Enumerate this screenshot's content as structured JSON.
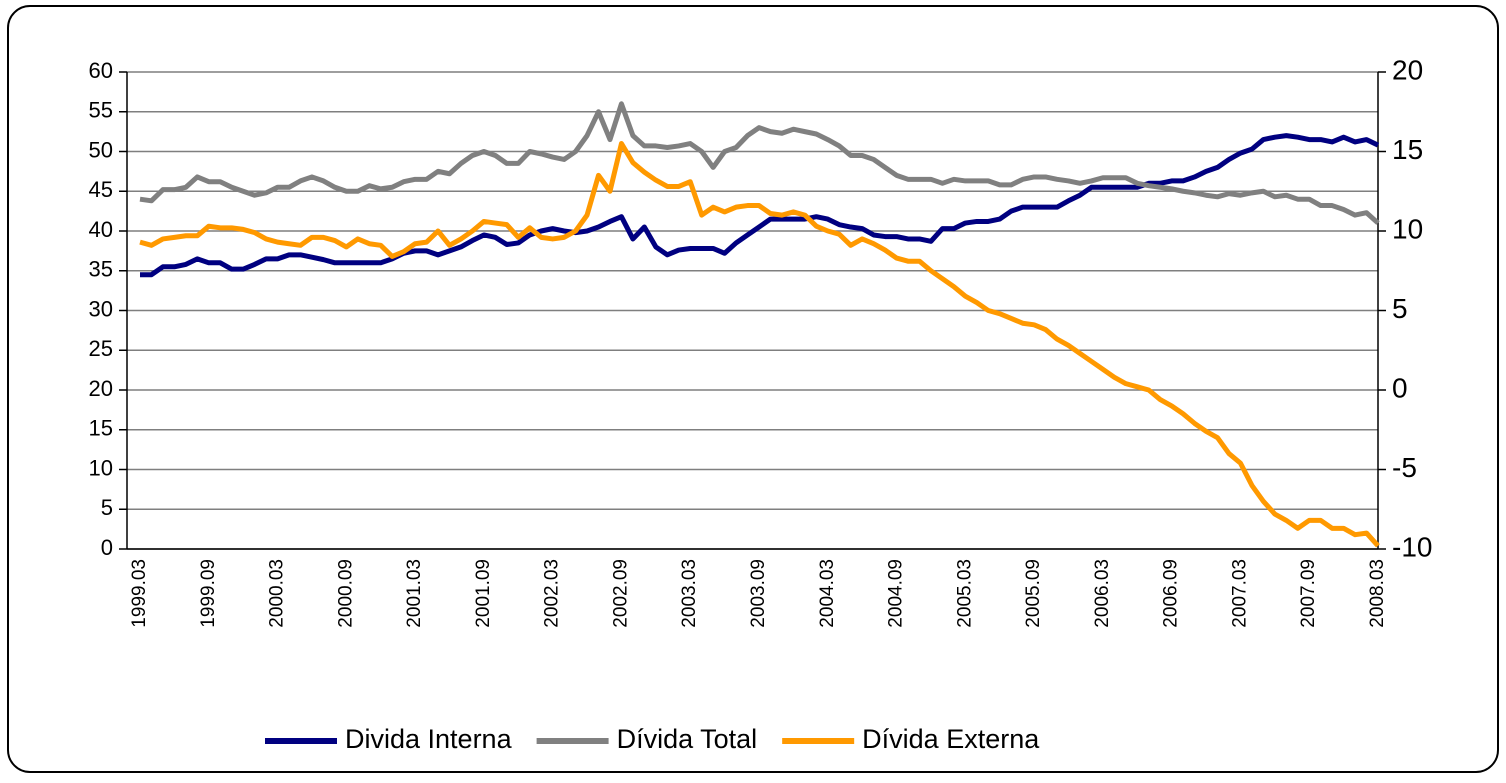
{
  "chart_data": {
    "type": "line",
    "categories": [
      "1999.03",
      null,
      null,
      null,
      null,
      null,
      "1999.09",
      null,
      null,
      null,
      null,
      null,
      "2000.03",
      null,
      null,
      null,
      null,
      null,
      "2000.09",
      null,
      null,
      null,
      null,
      null,
      "2001.03",
      null,
      null,
      null,
      null,
      null,
      "2001.09",
      null,
      null,
      null,
      null,
      null,
      "2002.03",
      null,
      null,
      null,
      null,
      null,
      "2002.09",
      null,
      null,
      null,
      null,
      null,
      "2003.03",
      null,
      null,
      null,
      null,
      null,
      "2003.09",
      null,
      null,
      null,
      null,
      null,
      "2004.03",
      null,
      null,
      null,
      null,
      null,
      "2004.09",
      null,
      null,
      null,
      null,
      null,
      "2005.03",
      null,
      null,
      null,
      null,
      null,
      "2005.09",
      null,
      null,
      null,
      null,
      null,
      "2006.03",
      null,
      null,
      null,
      null,
      null,
      "2006.09",
      null,
      null,
      null,
      null,
      null,
      "2007.03",
      null,
      null,
      null,
      null,
      null,
      "2007.09",
      null,
      null,
      null,
      null,
      null,
      "2008.03"
    ],
    "series": [
      {
        "name": "Divida Interna",
        "color": "#000080",
        "values": [
          34.5,
          34.5,
          35.5,
          35.5,
          35.8,
          36.5,
          36,
          36,
          35.2,
          35.2,
          35.8,
          36.5,
          36.5,
          37,
          37,
          36.7,
          36.4,
          36,
          36,
          36,
          36,
          36,
          36.5,
          37.2,
          37.5,
          37.5,
          37,
          37.5,
          38,
          38.8,
          39.5,
          39.2,
          38.3,
          38.5,
          39.5,
          40,
          40.3,
          40,
          39.8,
          40,
          40.5,
          41.2,
          41.8,
          39,
          40.5,
          38,
          37,
          37.6,
          37.8,
          37.8,
          37.8,
          37.2,
          38.5,
          39.5,
          40.5,
          41.5,
          41.5,
          41.5,
          41.5,
          41.8,
          41.5,
          40.8,
          40.5,
          40.3,
          39.5,
          39.3,
          39.3,
          39,
          39,
          38.7,
          40.3,
          40.3,
          41,
          41.2,
          41.2,
          41.5,
          42.5,
          43,
          43,
          43,
          43,
          43.8,
          44.5,
          45.5,
          45.5,
          45.5,
          45.5,
          45.5,
          46,
          46,
          46.3,
          46.3,
          46.8,
          47.5,
          48,
          49,
          49.8,
          50.3,
          51.5,
          51.8,
          52,
          51.8,
          51.5,
          51.5,
          51.2,
          51.8,
          51.2,
          51.5,
          50.8
        ]
      },
      {
        "name": "Dívida Total",
        "color": "#808080",
        "values": [
          44,
          43.8,
          45.2,
          45.2,
          45.5,
          46.8,
          46.2,
          46.2,
          45.5,
          45,
          44.5,
          44.8,
          45.5,
          45.5,
          46.3,
          46.8,
          46.3,
          45.5,
          45,
          45,
          45.7,
          45.3,
          45.5,
          46.2,
          46.5,
          46.5,
          47.5,
          47.2,
          48.5,
          49.5,
          50,
          49.5,
          48.5,
          48.5,
          50,
          49.7,
          49.3,
          49,
          50,
          52,
          55,
          51.5,
          56,
          52,
          50.7,
          50.7,
          50.5,
          50.7,
          51,
          50,
          48,
          50,
          50.5,
          52,
          53,
          52.5,
          52.3,
          52.8,
          52.5,
          52.2,
          51.5,
          50.7,
          49.5,
          49.5,
          49,
          48,
          47,
          46.5,
          46.5,
          46.5,
          46,
          46.5,
          46.3,
          46.3,
          46.3,
          45.8,
          45.8,
          46.5,
          46.8,
          46.8,
          46.5,
          46.3,
          46,
          46.3,
          46.7,
          46.7,
          46.7,
          46,
          45.7,
          45.5,
          45.3,
          45,
          44.8,
          44.5,
          44.3,
          44.7,
          44.5,
          44.8,
          45,
          44.3,
          44.5,
          44,
          44,
          43.2,
          43.2,
          42.7,
          42,
          42.3,
          41
        ]
      },
      {
        "name": "Dívida Externa",
        "color": "#FF9900",
        "axis": "y2",
        "values": [
          9.3,
          9.1,
          9.5,
          9.6,
          9.7,
          9.7,
          10.3,
          10.2,
          10.2,
          10.1,
          9.9,
          9.5,
          9.3,
          9.2,
          9.1,
          9.6,
          9.6,
          9.4,
          9,
          9.5,
          9.2,
          9.1,
          8.4,
          8.7,
          9.2,
          9.3,
          10,
          9.1,
          9.5,
          10,
          10.6,
          10.5,
          10.4,
          9.6,
          10.2,
          9.6,
          9.5,
          9.6,
          10,
          11,
          13.5,
          12.5,
          15.5,
          14.3,
          13.7,
          13.2,
          12.8,
          12.8,
          13.1,
          11,
          11.5,
          11.2,
          11.5,
          11.6,
          11.6,
          11.1,
          11,
          11.2,
          11,
          10.3,
          10,
          9.8,
          9.1,
          9.5,
          9.2,
          8.8,
          8.3,
          8.1,
          8.1,
          7.5,
          7,
          6.5,
          5.9,
          5.5,
          5,
          4.8,
          4.5,
          4.2,
          4.1,
          3.8,
          3.2,
          2.8,
          2.3,
          1.8,
          1.3,
          0.8,
          0.4,
          0.2,
          0,
          -0.6,
          -1,
          -1.5,
          -2.1,
          -2.6,
          -3,
          -4,
          -4.6,
          -6,
          -7,
          -7.8,
          -8.2,
          -8.7,
          -8.2,
          -8.2,
          -8.7,
          -8.7,
          -9.1,
          -9,
          -9.8
        ]
      }
    ],
    "ylim": [
      0,
      60
    ],
    "yticks": [
      0,
      5,
      10,
      15,
      20,
      25,
      30,
      35,
      40,
      45,
      50,
      55,
      60
    ],
    "y2lim": [
      -10,
      20
    ],
    "y2ticks": [
      -10,
      -5,
      0,
      5,
      10,
      15,
      20
    ],
    "grid": true
  }
}
